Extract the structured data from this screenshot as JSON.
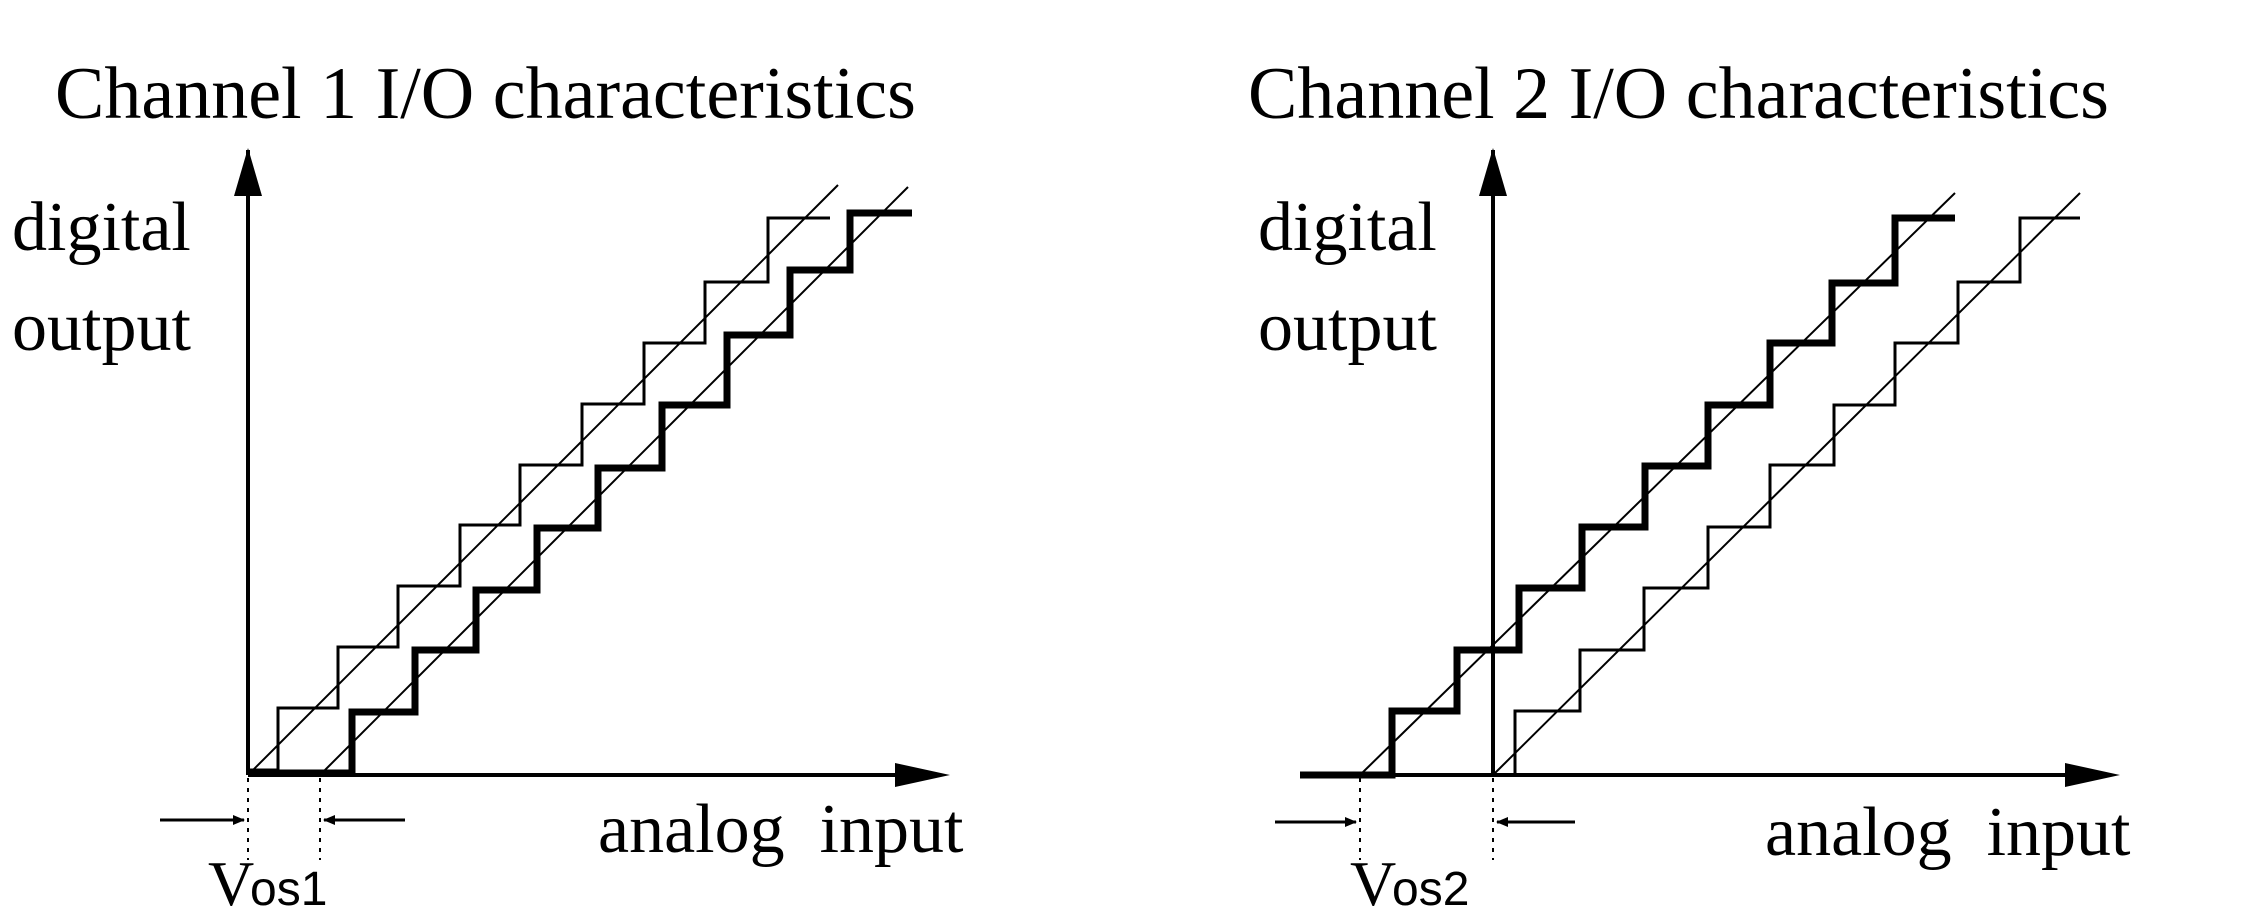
{
  "figure": {
    "panels": [
      {
        "id": "channel1",
        "title": "Channel 1 I/O characteristics",
        "y_label_line1": "digital",
        "y_label_line2": "output",
        "x_label": "analog  input",
        "offset_label_main": "V",
        "offset_label_sub": "os1",
        "steps": 9,
        "offset_direction": "positive"
      },
      {
        "id": "channel2",
        "title": "Channel 2 I/O characteristics",
        "y_label_line1": "digital",
        "y_label_line2": "output",
        "x_label": "analog  input",
        "offset_label_main": "V",
        "offset_label_sub": "os2",
        "steps": 9,
        "offset_direction": "negative"
      }
    ],
    "colors": {
      "ink": "#000000",
      "background": "#ffffff"
    }
  }
}
